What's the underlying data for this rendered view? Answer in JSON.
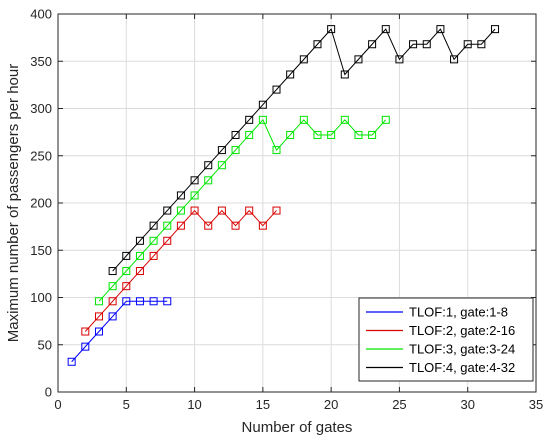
{
  "chart_data": {
    "type": "line",
    "xlabel": "Number of gates",
    "ylabel": "Maximum number of passengers per hour",
    "xlim": [
      0,
      35
    ],
    "ylim": [
      0,
      400
    ],
    "xticks": [
      0,
      5,
      10,
      15,
      20,
      25,
      30,
      35
    ],
    "yticks": [
      0,
      50,
      100,
      150,
      200,
      250,
      300,
      350,
      400
    ],
    "grid": true,
    "marker": "square",
    "legend_position": "bottom-right",
    "series": [
      {
        "name": "TLOF:1, gate:1-8",
        "color": "#0000ff",
        "x": [
          1,
          2,
          3,
          4,
          5,
          6,
          7,
          8
        ],
        "y": [
          32,
          48,
          64,
          80,
          96,
          96,
          96,
          96
        ]
      },
      {
        "name": "TLOF:2, gate:2-16",
        "color": "#d90000",
        "x": [
          2,
          3,
          4,
          5,
          6,
          7,
          8,
          9,
          10,
          11,
          12,
          13,
          14,
          15,
          16
        ],
        "y": [
          64,
          80,
          96,
          112,
          128,
          144,
          160,
          176,
          192,
          176,
          192,
          176,
          192,
          176,
          192
        ]
      },
      {
        "name": "TLOF:3, gate:3-24",
        "color": "#00e600",
        "x": [
          3,
          4,
          5,
          6,
          7,
          8,
          9,
          10,
          11,
          12,
          13,
          14,
          15,
          16,
          17,
          18,
          19,
          20,
          21,
          22,
          23,
          24
        ],
        "y": [
          96,
          112,
          128,
          144,
          160,
          176,
          192,
          208,
          224,
          240,
          256,
          272,
          288,
          256,
          272,
          288,
          272,
          272,
          288,
          272,
          272,
          288
        ]
      },
      {
        "name": "TLOF:4, gate:4-32",
        "color": "#000000",
        "x": [
          4,
          5,
          6,
          7,
          8,
          9,
          10,
          11,
          12,
          13,
          14,
          15,
          16,
          17,
          18,
          19,
          20,
          21,
          22,
          23,
          24,
          25,
          26,
          27,
          28,
          29,
          30,
          31,
          32
        ],
        "y": [
          128,
          144,
          160,
          176,
          192,
          208,
          224,
          240,
          256,
          272,
          288,
          304,
          320,
          336,
          352,
          368,
          384,
          336,
          352,
          368,
          384,
          352,
          368,
          368,
          384,
          352,
          368,
          368,
          384
        ]
      }
    ]
  }
}
